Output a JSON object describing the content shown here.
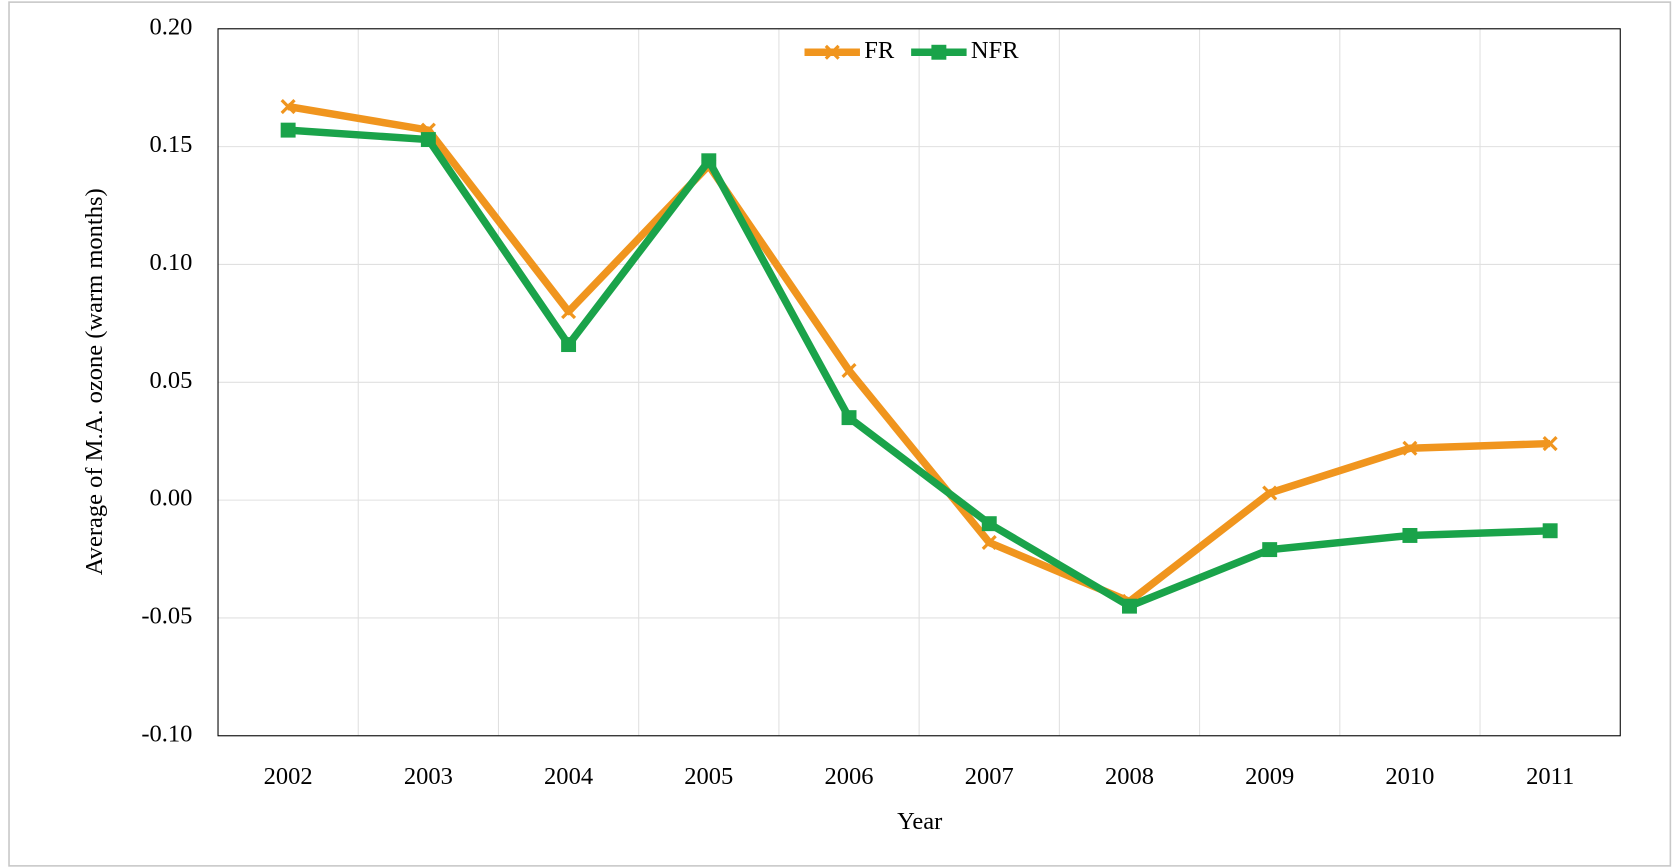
{
  "chart_data": {
    "type": "line",
    "x_label": "Year",
    "y_label": "Average of M.A. ozone (warm months)",
    "categories": [
      "2002",
      "2003",
      "2004",
      "2005",
      "2006",
      "2007",
      "2008",
      "2009",
      "2010",
      "2011"
    ],
    "series": [
      {
        "name": "FR",
        "color": "#f0951e",
        "marker": "x",
        "values": [
          0.167,
          0.157,
          0.08,
          0.142,
          0.055,
          -0.018,
          -0.043,
          0.003,
          0.022,
          0.024
        ]
      },
      {
        "name": "NFR",
        "color": "#1aa34a",
        "marker": "square",
        "values": [
          0.157,
          0.153,
          0.066,
          0.144,
          0.035,
          -0.01,
          -0.045,
          -0.021,
          -0.015,
          -0.013
        ]
      }
    ],
    "ylim": [
      -0.1,
      0.2
    ],
    "yticks": [
      {
        "value": -0.1,
        "label": "-0.10"
      },
      -0.05,
      {
        "value": 0,
        "label": "0.00"
      },
      0.05,
      {
        "value": 0.1,
        "label": "0.10"
      },
      0.15,
      {
        "value": 0.2,
        "label": "0.20"
      }
    ],
    "grid": true,
    "legend": "top"
  }
}
